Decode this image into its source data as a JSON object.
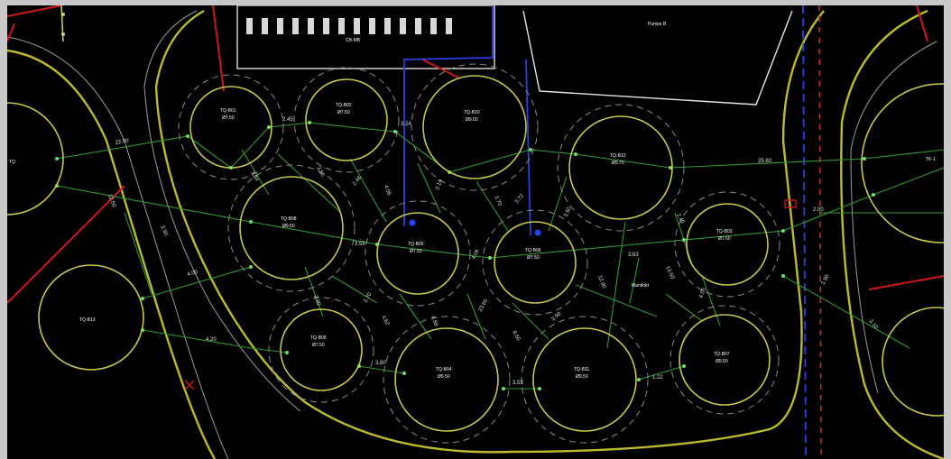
{
  "drawing": {
    "building_left_label": "CB-MB",
    "building_right_label": "Pumps B",
    "center_label": "Manifold",
    "far_right_label": "TK-1"
  },
  "tanks": [
    {
      "tag": "TQ-B01",
      "spec": "Ø7.50"
    },
    {
      "tag": "TQ-B02",
      "spec": "Ø7.50"
    },
    {
      "tag": "TQ-B10",
      "spec": "Ø9.50"
    },
    {
      "tag": "TQ-B12",
      "spec": "Ø9.70"
    },
    {
      "tag": "TQ-B08",
      "spec": "Ø9.50"
    },
    {
      "tag": "TQ-B05",
      "spec": "Ø7.50"
    },
    {
      "tag": "TQ-B06",
      "spec": "Ø7.50"
    },
    {
      "tag": "TQ-B03",
      "spec": "Ø7.50"
    },
    {
      "tag": "TQ-B13",
      "spec": ""
    },
    {
      "tag": "TQ-B09",
      "spec": "Ø7.50"
    },
    {
      "tag": "TQ-B04",
      "spec": "Ø9.50"
    },
    {
      "tag": "TQ-B11",
      "spec": "Ø9.50"
    },
    {
      "tag": "TQ-B07",
      "spec": "Ø9.50"
    },
    {
      "tag": "TQ",
      "spec": ""
    }
  ],
  "dimensions": [
    "22.50",
    "2.45",
    "3.24",
    "25.60",
    "12.50",
    "3.84",
    "3.50",
    "2.46",
    "4.06",
    "2.14",
    "3.70",
    "3.72",
    "3.50",
    "2.40",
    "3.55",
    "4.06",
    "3.63",
    "2.00",
    "4.00",
    "3.90",
    "2.30",
    "2.70",
    "4.62",
    "4.88",
    "23.65",
    "8.50",
    "3.90",
    "12.90",
    "13.50",
    "4.05",
    "1.90",
    "3.10",
    "4.20",
    "3.80",
    "3.53",
    "1.22"
  ],
  "colors": {
    "background": "#000000",
    "tank_outline": "#c8c84a",
    "pipe": "#2f9a2f",
    "boundary": "#bcbc2a",
    "pipeline_red": "#d01818",
    "pipeline_blue": "#2a40e0"
  }
}
